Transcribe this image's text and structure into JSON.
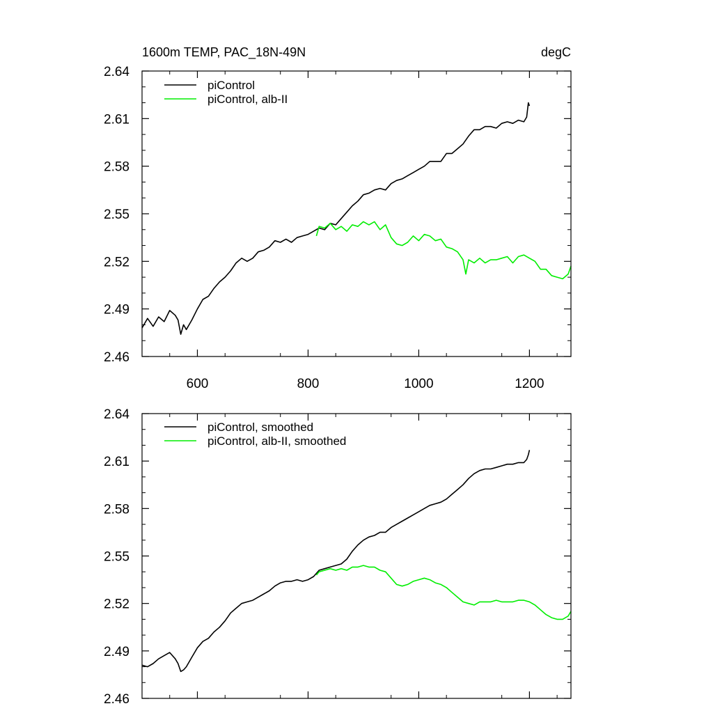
{
  "colors": {
    "picontrol": "#000000",
    "alb": "#00ee00",
    "axis": "#000000",
    "background": "#ffffff"
  },
  "chart_data": [
    {
      "type": "line",
      "title": "1600m TEMP, PAC_18N-49N",
      "units": "degC",
      "xlim": [
        500,
        1275
      ],
      "ylim": [
        2.46,
        2.64
      ],
      "xticks": [
        600,
        800,
        1000,
        1200
      ],
      "xtick_labels": [
        "600",
        "800",
        "1000",
        "1200"
      ],
      "xtick_labels_visible": true,
      "yticks": [
        2.46,
        2.49,
        2.52,
        2.55,
        2.58,
        2.61,
        2.64
      ],
      "ytick_labels": [
        "2.46",
        "2.49",
        "2.52",
        "2.55",
        "2.58",
        "2.61",
        "2.64"
      ],
      "legend_position": "top-left",
      "series": [
        {
          "name": "piControl",
          "color": "black",
          "x": [
            500,
            510,
            520,
            530,
            540,
            550,
            560,
            565,
            570,
            575,
            580,
            590,
            600,
            610,
            620,
            630,
            640,
            650,
            660,
            670,
            680,
            690,
            700,
            710,
            720,
            730,
            740,
            750,
            760,
            770,
            780,
            790,
            800,
            810,
            820,
            830,
            840,
            850,
            860,
            870,
            880,
            890,
            900,
            910,
            920,
            930,
            940,
            950,
            960,
            970,
            980,
            990,
            1000,
            1010,
            1020,
            1030,
            1040,
            1050,
            1060,
            1070,
            1080,
            1090,
            1100,
            1110,
            1120,
            1130,
            1140,
            1150,
            1160,
            1170,
            1180,
            1190,
            1195,
            1198,
            1200
          ],
          "values": [
            2.478,
            2.484,
            2.479,
            2.485,
            2.482,
            2.489,
            2.486,
            2.483,
            2.474,
            2.48,
            2.477,
            2.483,
            2.49,
            2.496,
            2.498,
            2.503,
            2.507,
            2.51,
            2.514,
            2.519,
            2.522,
            2.52,
            2.522,
            2.526,
            2.527,
            2.529,
            2.533,
            2.532,
            2.534,
            2.532,
            2.535,
            2.536,
            2.537,
            2.539,
            2.541,
            2.54,
            2.544,
            2.543,
            2.547,
            2.551,
            2.555,
            2.558,
            2.562,
            2.563,
            2.565,
            2.566,
            2.565,
            2.569,
            2.571,
            2.572,
            2.574,
            2.576,
            2.578,
            2.58,
            2.583,
            2.583,
            2.583,
            2.588,
            2.588,
            2.591,
            2.594,
            2.599,
            2.603,
            2.603,
            2.605,
            2.605,
            2.604,
            2.607,
            2.608,
            2.607,
            2.609,
            2.608,
            2.611,
            2.62,
            2.618
          ]
        },
        {
          "name": "piControl, alb-II",
          "color": "green",
          "x": [
            815,
            820,
            830,
            840,
            850,
            860,
            870,
            880,
            890,
            900,
            910,
            920,
            930,
            940,
            950,
            960,
            970,
            980,
            990,
            1000,
            1010,
            1020,
            1030,
            1040,
            1050,
            1060,
            1070,
            1080,
            1085,
            1090,
            1100,
            1110,
            1120,
            1130,
            1140,
            1150,
            1160,
            1170,
            1180,
            1190,
            1200,
            1210,
            1220,
            1230,
            1240,
            1250,
            1260,
            1270,
            1275
          ],
          "values": [
            2.536,
            2.542,
            2.541,
            2.544,
            2.54,
            2.542,
            2.539,
            2.543,
            2.542,
            2.545,
            2.543,
            2.545,
            2.54,
            2.543,
            2.535,
            2.531,
            2.53,
            2.532,
            2.536,
            2.533,
            2.537,
            2.536,
            2.533,
            2.534,
            2.529,
            2.528,
            2.526,
            2.521,
            2.512,
            2.521,
            2.519,
            2.522,
            2.519,
            2.521,
            2.521,
            2.522,
            2.523,
            2.519,
            2.523,
            2.524,
            2.522,
            2.52,
            2.515,
            2.515,
            2.511,
            2.51,
            2.509,
            2.512,
            2.517
          ]
        }
      ]
    },
    {
      "type": "line",
      "title": "",
      "xlim": [
        500,
        1275
      ],
      "ylim": [
        2.46,
        2.64
      ],
      "xticks": [
        600,
        800,
        1000,
        1200
      ],
      "xtick_labels_visible": false,
      "yticks": [
        2.46,
        2.49,
        2.52,
        2.55,
        2.58,
        2.61,
        2.64
      ],
      "ytick_labels": [
        "2.46",
        "2.49",
        "2.52",
        "2.55",
        "2.58",
        "2.61",
        "2.64"
      ],
      "legend_position": "top-left",
      "series": [
        {
          "name": "piControl, smoothed",
          "color": "black",
          "x": [
            500,
            510,
            520,
            530,
            540,
            550,
            560,
            565,
            570,
            575,
            580,
            590,
            600,
            610,
            620,
            630,
            640,
            650,
            660,
            670,
            680,
            690,
            700,
            710,
            720,
            730,
            740,
            750,
            760,
            770,
            780,
            790,
            800,
            810,
            820,
            830,
            840,
            850,
            860,
            870,
            880,
            890,
            900,
            910,
            920,
            930,
            940,
            950,
            960,
            970,
            980,
            990,
            1000,
            1010,
            1020,
            1030,
            1040,
            1050,
            1060,
            1070,
            1080,
            1090,
            1100,
            1110,
            1120,
            1130,
            1140,
            1150,
            1160,
            1170,
            1180,
            1190,
            1195,
            1198,
            1200
          ],
          "values": [
            2.481,
            2.48,
            2.482,
            2.485,
            2.487,
            2.489,
            2.485,
            2.482,
            2.477,
            2.478,
            2.48,
            2.486,
            2.492,
            2.496,
            2.498,
            2.502,
            2.505,
            2.509,
            2.514,
            2.517,
            2.52,
            2.521,
            2.522,
            2.524,
            2.526,
            2.528,
            2.531,
            2.533,
            2.534,
            2.534,
            2.535,
            2.534,
            2.535,
            2.537,
            2.541,
            2.542,
            2.543,
            2.544,
            2.545,
            2.548,
            2.553,
            2.557,
            2.56,
            2.562,
            2.563,
            2.565,
            2.565,
            2.568,
            2.57,
            2.572,
            2.574,
            2.576,
            2.578,
            2.58,
            2.582,
            2.583,
            2.584,
            2.586,
            2.589,
            2.592,
            2.595,
            2.599,
            2.602,
            2.604,
            2.605,
            2.605,
            2.606,
            2.607,
            2.608,
            2.608,
            2.609,
            2.609,
            2.611,
            2.614,
            2.617
          ]
        },
        {
          "name": "piControl, alb-II, smoothed",
          "color": "green",
          "x": [
            815,
            820,
            830,
            840,
            850,
            860,
            870,
            880,
            890,
            900,
            910,
            920,
            930,
            940,
            950,
            960,
            970,
            980,
            990,
            1000,
            1010,
            1020,
            1030,
            1040,
            1050,
            1060,
            1070,
            1080,
            1090,
            1100,
            1110,
            1120,
            1130,
            1140,
            1150,
            1160,
            1170,
            1180,
            1190,
            1200,
            1210,
            1220,
            1230,
            1240,
            1250,
            1260,
            1270,
            1275
          ],
          "values": [
            2.538,
            2.54,
            2.541,
            2.542,
            2.541,
            2.542,
            2.541,
            2.543,
            2.543,
            2.544,
            2.543,
            2.543,
            2.541,
            2.54,
            2.536,
            2.532,
            2.531,
            2.532,
            2.534,
            2.535,
            2.536,
            2.535,
            2.533,
            2.532,
            2.53,
            2.527,
            2.524,
            2.521,
            2.52,
            2.519,
            2.521,
            2.521,
            2.521,
            2.522,
            2.521,
            2.521,
            2.521,
            2.522,
            2.522,
            2.521,
            2.519,
            2.516,
            2.513,
            2.511,
            2.51,
            2.51,
            2.512,
            2.515
          ]
        }
      ]
    }
  ]
}
